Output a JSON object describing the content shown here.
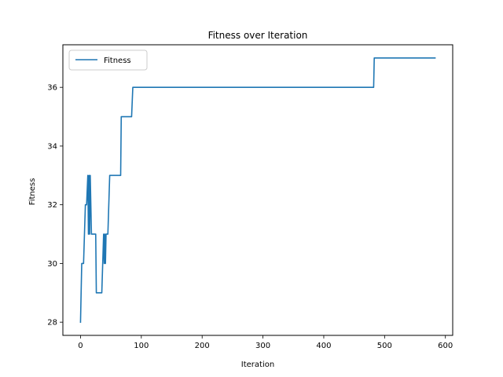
{
  "chart_data": {
    "type": "line",
    "title": "Fitness over Iteration",
    "xlabel": "Iteration",
    "ylabel": "Fitness",
    "xlim": [
      -29,
      612
    ],
    "ylim": [
      27.55,
      37.45
    ],
    "xticks": [
      0,
      100,
      200,
      300,
      400,
      500,
      600
    ],
    "yticks": [
      28,
      30,
      32,
      34,
      36
    ],
    "grid": false,
    "legend_position": "top-left",
    "series": [
      {
        "name": "Fitness",
        "color": "#1f77b4",
        "x": [
          0,
          2,
          5,
          8,
          10,
          12,
          13,
          14,
          15,
          16,
          18,
          20,
          25,
          26,
          35,
          38,
          39,
          40,
          41,
          42,
          45,
          48,
          50,
          60,
          66,
          67,
          84,
          86,
          87,
          480,
          482,
          483,
          583
        ],
        "y": [
          28,
          30,
          30,
          32,
          32,
          33,
          31,
          33,
          31,
          33,
          31,
          31,
          31,
          29,
          29,
          31,
          30,
          31,
          30,
          31,
          31,
          33,
          33,
          33,
          33,
          35,
          35,
          36,
          36,
          36,
          36,
          37,
          37
        ]
      }
    ]
  }
}
